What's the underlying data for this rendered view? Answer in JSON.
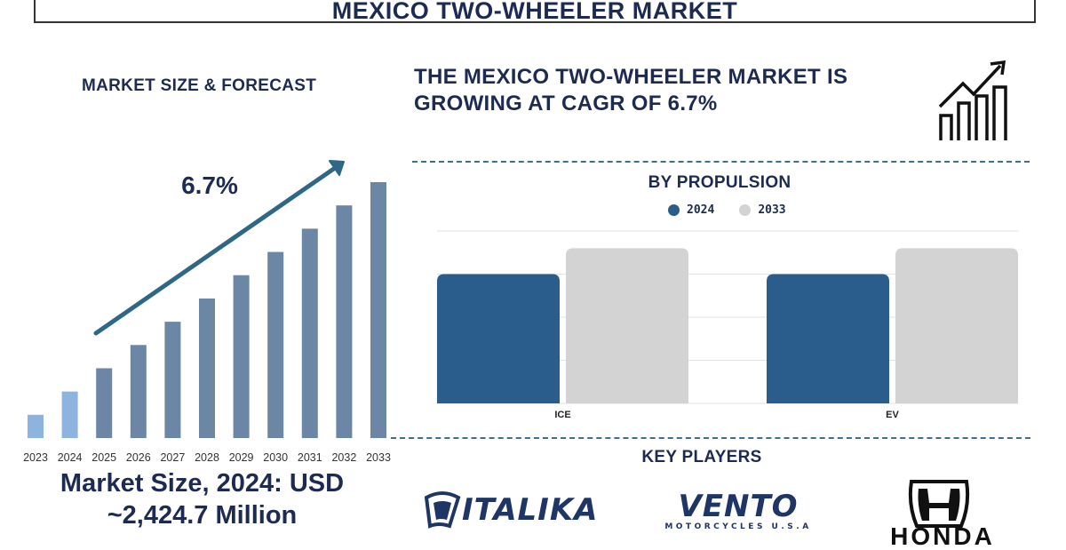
{
  "title": "MEXICO TWO-WHEELER MARKET",
  "left_panel": {
    "heading": "MARKET SIZE & FORECAST",
    "cagr_label": "6.7%",
    "market_size_line1": "Market Size, 2024: USD",
    "market_size_line2": "~2,424.7 Million"
  },
  "headline": "THE MEXICO TWO-WHEELER MARKET IS GROWING AT CAGR OF 6.7%",
  "propulsion": {
    "heading": "BY PROPULSION"
  },
  "key_players": {
    "heading": "KEY PLAYERS",
    "logos": [
      {
        "name": "ITALIKA"
      },
      {
        "name": "VENTO",
        "tagline": "MOTORCYCLES U.S.A"
      },
      {
        "name": "HONDA"
      }
    ]
  },
  "colors": {
    "navy_text": "#1d2b52",
    "bar_light_blue": "#8cb4de",
    "bar_steel_blue": "#6c86a6",
    "series_2024": "#2b5d8c",
    "series_2033": "#d3d3d3",
    "divider": "#3f6f8a"
  },
  "chart_data": [
    {
      "type": "bar",
      "categories": [
        "2023",
        "2024",
        "2025",
        "2026",
        "2027",
        "2028",
        "2029",
        "2030",
        "2031",
        "2032",
        "2033"
      ],
      "values": [
        10,
        20,
        30,
        40,
        50,
        60,
        70,
        80,
        90,
        100,
        110
      ],
      "highlight_categories": [
        "2023",
        "2024"
      ],
      "annotation": "6.7%",
      "grid": false,
      "xlabel": "",
      "ylabel": ""
    },
    {
      "type": "bar",
      "categories": [
        "ICE",
        "EV"
      ],
      "series": [
        {
          "name": "2024",
          "values": [
            75,
            75
          ]
        },
        {
          "name": "2033",
          "values": [
            90,
            90
          ]
        }
      ],
      "ylim": [
        0,
        100
      ],
      "grid": true,
      "legend": "top-center",
      "xlabel": "",
      "ylabel": ""
    }
  ]
}
